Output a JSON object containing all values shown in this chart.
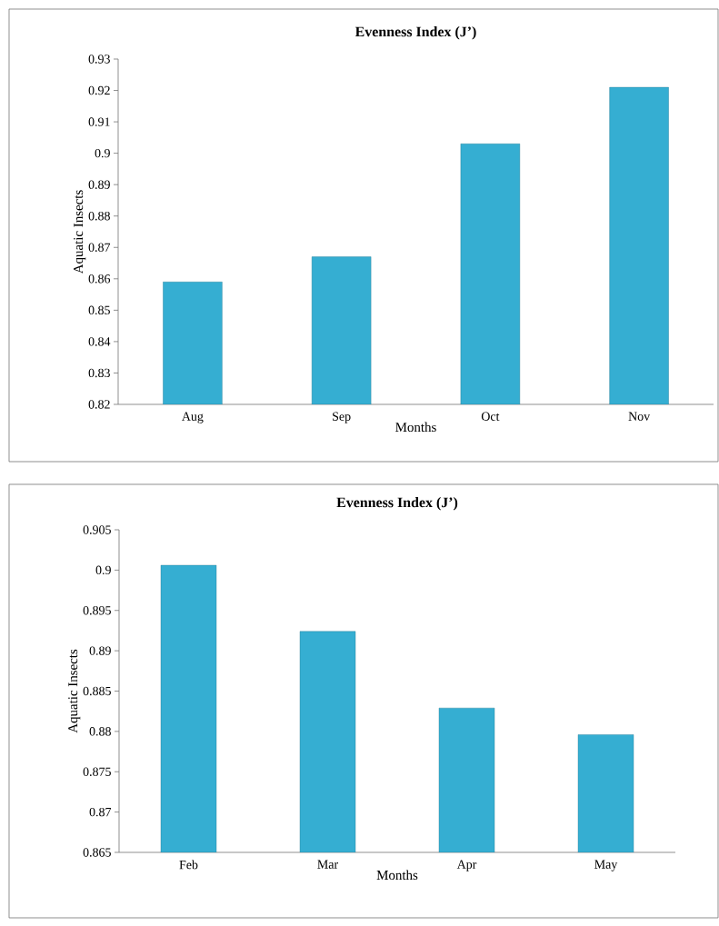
{
  "chart_data": [
    {
      "type": "bar",
      "title": "Evenness Index (J’)",
      "xlabel": "Months",
      "ylabel": "Aquatic Insects",
      "categories": [
        "Aug",
        "Sep",
        "Oct",
        "Nov"
      ],
      "values": [
        0.859,
        0.867,
        0.903,
        0.921
      ],
      "color": "#35aed2",
      "ylim": [
        0.82,
        0.93
      ],
      "yticks": [
        0.82,
        0.83,
        0.84,
        0.85,
        0.86,
        0.87,
        0.88,
        0.89,
        0.9,
        0.91,
        0.92,
        0.93
      ]
    },
    {
      "type": "bar",
      "title": "Evenness Index (J’)",
      "xlabel": "Months",
      "ylabel": "Aquatic Insects",
      "categories": [
        "Feb",
        "Mar",
        "Apr",
        "May"
      ],
      "values": [
        0.9006,
        0.8924,
        0.8829,
        0.8796
      ],
      "color": "#35aed2",
      "ylim": [
        0.865,
        0.905
      ],
      "yticks": [
        0.865,
        0.87,
        0.875,
        0.88,
        0.885,
        0.89,
        0.895,
        0.9,
        0.905
      ]
    }
  ]
}
